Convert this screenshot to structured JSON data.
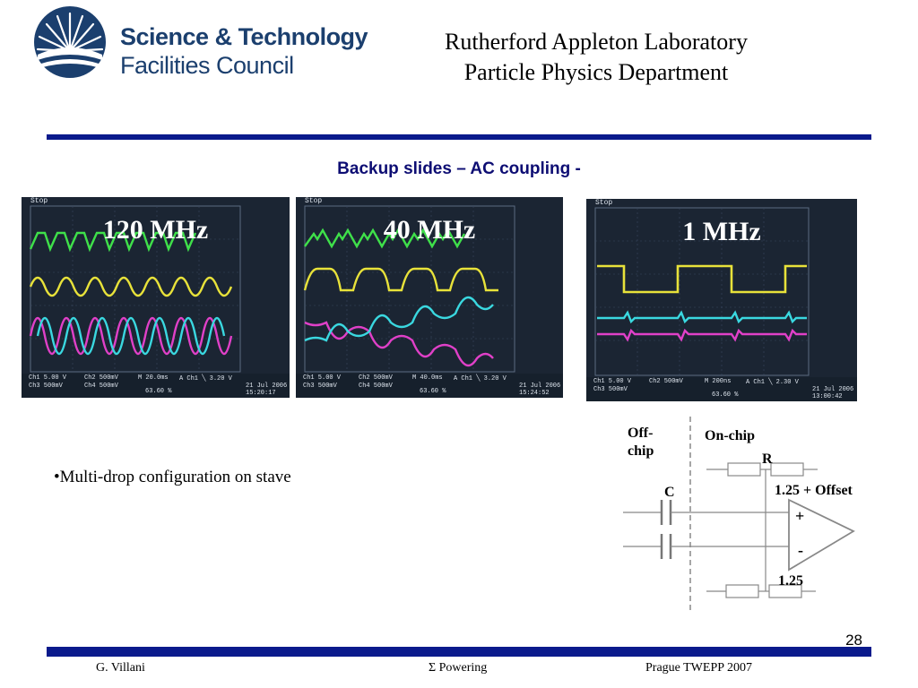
{
  "header": {
    "org_line1": "Science & Technology",
    "org_line2": "Facilities Council",
    "lab_line1": "Rutherford Appleton Laboratory",
    "lab_line2": "Particle Physics Department"
  },
  "slide_title": "Backup slides – AC coupling -",
  "scopes": [
    {
      "frequency": "120 MHz",
      "status": "Stop",
      "ch1": "Ch1  5.00 V",
      "ch2": "Ch2  500mV",
      "ch3": "Ch3  500mV",
      "ch4": "Ch4  500mV",
      "timebase": "M 20.0ms",
      "trigger": "A  Ch1  ╲  3.20 V",
      "trigger_pct": "63.60 %",
      "date": "21 Jul  2006",
      "time": "15:20:17"
    },
    {
      "frequency": "40 MHz",
      "status": "Stop",
      "ch1": "Ch1  5.00 V",
      "ch2": "Ch2  500mV",
      "ch3": "Ch3  500mV",
      "ch4": "Ch4  500mV",
      "timebase": "M 40.0ms",
      "trigger": "A  Ch1  ╲  3.20 V",
      "trigger_pct": "63.60 %",
      "date": "21 Jul  2006",
      "time": "15:24:52"
    },
    {
      "frequency": "1 MHz",
      "status": "Stop",
      "ch1": "Ch1  5.00 V",
      "ch2": "Ch2  500mV",
      "ch3": "Ch3  500mV",
      "timebase": "M 200ns",
      "trigger": "A  Ch1  ╲  2.30 V",
      "trigger_pct": "63.60 %",
      "date": "21 Jul  2006",
      "time": "13:00:42"
    }
  ],
  "bullet": "•Multi-drop configuration on stave",
  "circuit": {
    "off_chip": "Off-\nchip",
    "on_chip": "On-chip",
    "resistor": "R",
    "capacitor": "C",
    "plus_input": "1.25 + Offset",
    "plus_sign": "+",
    "minus_sign": "-",
    "minus_input": "1.25"
  },
  "page_number": "28",
  "footer": {
    "author": "G. Villani",
    "topic": "Σ Powering",
    "event": "Prague TWEPP 2007"
  },
  "colors": {
    "brand_navy": "#1b3f6e",
    "rule_blue": "#0a1a8c",
    "trace_green": "#3fe04a",
    "trace_yellow": "#e8e23a",
    "trace_magenta": "#e040c8",
    "trace_cyan": "#3ad8e0"
  }
}
